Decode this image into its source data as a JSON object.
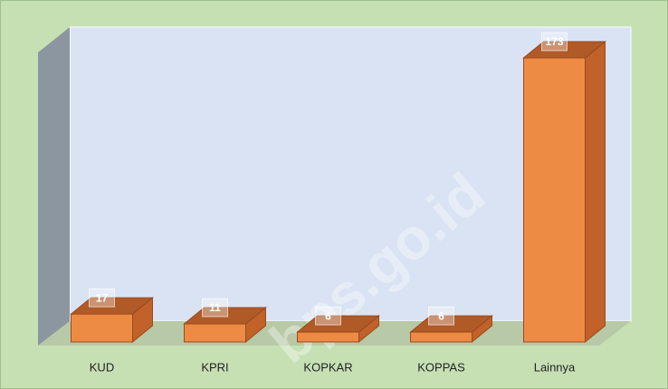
{
  "chart_data": {
    "type": "bar3d",
    "categories": [
      "KUD",
      "KPRI",
      "KOPKAR",
      "KOPPAS",
      "Lainnya"
    ],
    "values": [
      17,
      11,
      6,
      6,
      173
    ],
    "color": "#ed8b45",
    "watermark": "bps.go.id"
  }
}
